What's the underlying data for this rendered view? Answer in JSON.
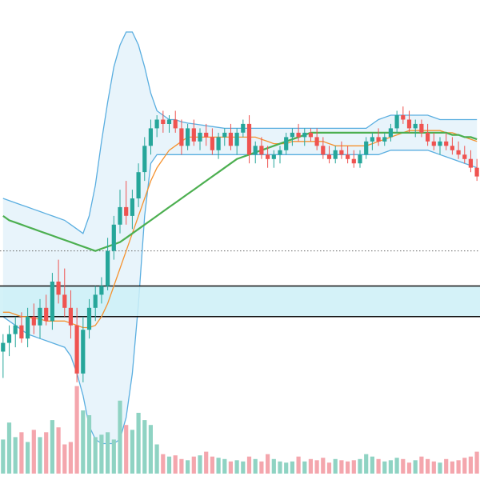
{
  "chart_data": {
    "type": "candlestick",
    "price_range": [
      5,
      100
    ],
    "volume_range": [
      0,
      100
    ],
    "grid": false,
    "legend": "none",
    "colors": {
      "up": "#26a69a",
      "down": "#ef5350",
      "volume_up": "#8fd3c3",
      "volume_down": "#f4a6ad",
      "bollinger_line": "#5aaee0",
      "bollinger_fill": "#e8f4fb",
      "ma_fast": "#f5922f",
      "ma_slow": "#4caf50",
      "zone_fill": "#cdf0f7",
      "zone_border": "#111111",
      "level_line": "#666666"
    },
    "candles": [
      {
        "o": 27,
        "h": 31,
        "l": 21,
        "c": 29
      },
      {
        "o": 29,
        "h": 33,
        "l": 26,
        "c": 31
      },
      {
        "o": 31,
        "h": 35,
        "l": 28,
        "c": 33
      },
      {
        "o": 33,
        "h": 36,
        "l": 29,
        "c": 30
      },
      {
        "o": 30,
        "h": 37,
        "l": 28,
        "c": 35
      },
      {
        "o": 35,
        "h": 38,
        "l": 31,
        "c": 33
      },
      {
        "o": 33,
        "h": 39,
        "l": 30,
        "c": 37
      },
      {
        "o": 37,
        "h": 40,
        "l": 33,
        "c": 34
      },
      {
        "o": 34,
        "h": 45,
        "l": 32,
        "c": 43
      },
      {
        "o": 43,
        "h": 48,
        "l": 38,
        "c": 40
      },
      {
        "o": 40,
        "h": 46,
        "l": 35,
        "c": 37
      },
      {
        "o": 37,
        "h": 41,
        "l": 30,
        "c": 33
      },
      {
        "o": 33,
        "h": 37,
        "l": 20,
        "c": 22
      },
      {
        "o": 22,
        "h": 35,
        "l": 20,
        "c": 32
      },
      {
        "o": 32,
        "h": 39,
        "l": 30,
        "c": 37
      },
      {
        "o": 37,
        "h": 42,
        "l": 34,
        "c": 40
      },
      {
        "o": 40,
        "h": 44,
        "l": 38,
        "c": 42
      },
      {
        "o": 42,
        "h": 53,
        "l": 41,
        "c": 50
      },
      {
        "o": 50,
        "h": 58,
        "l": 48,
        "c": 56
      },
      {
        "o": 56,
        "h": 64,
        "l": 54,
        "c": 60
      },
      {
        "o": 60,
        "h": 66,
        "l": 56,
        "c": 58
      },
      {
        "o": 58,
        "h": 64,
        "l": 55,
        "c": 62
      },
      {
        "o": 62,
        "h": 70,
        "l": 60,
        "c": 68
      },
      {
        "o": 68,
        "h": 76,
        "l": 66,
        "c": 74
      },
      {
        "o": 74,
        "h": 80,
        "l": 72,
        "c": 78
      },
      {
        "o": 78,
        "h": 81,
        "l": 76,
        "c": 80
      },
      {
        "o": 80,
        "h": 82,
        "l": 77,
        "c": 79
      },
      {
        "o": 79,
        "h": 81,
        "l": 77,
        "c": 80
      },
      {
        "o": 80,
        "h": 82,
        "l": 77,
        "c": 78
      },
      {
        "o": 78,
        "h": 80,
        "l": 72,
        "c": 74
      },
      {
        "o": 74,
        "h": 79,
        "l": 73,
        "c": 78
      },
      {
        "o": 78,
        "h": 80,
        "l": 74,
        "c": 75
      },
      {
        "o": 75,
        "h": 78,
        "l": 73,
        "c": 77
      },
      {
        "o": 77,
        "h": 79,
        "l": 74,
        "c": 76
      },
      {
        "o": 76,
        "h": 78,
        "l": 72,
        "c": 73
      },
      {
        "o": 73,
        "h": 77,
        "l": 71,
        "c": 76
      },
      {
        "o": 76,
        "h": 78,
        "l": 74,
        "c": 77
      },
      {
        "o": 77,
        "h": 79,
        "l": 73,
        "c": 74
      },
      {
        "o": 74,
        "h": 78,
        "l": 72,
        "c": 77
      },
      {
        "o": 77,
        "h": 80,
        "l": 76,
        "c": 79
      },
      {
        "o": 79,
        "h": 81,
        "l": 70,
        "c": 72
      },
      {
        "o": 72,
        "h": 75,
        "l": 70,
        "c": 74
      },
      {
        "o": 74,
        "h": 76,
        "l": 71,
        "c": 72
      },
      {
        "o": 72,
        "h": 74,
        "l": 69,
        "c": 71
      },
      {
        "o": 71,
        "h": 73,
        "l": 69,
        "c": 72
      },
      {
        "o": 72,
        "h": 74,
        "l": 70,
        "c": 73
      },
      {
        "o": 73,
        "h": 77,
        "l": 72,
        "c": 76
      },
      {
        "o": 76,
        "h": 78,
        "l": 74,
        "c": 77
      },
      {
        "o": 77,
        "h": 79,
        "l": 75,
        "c": 76
      },
      {
        "o": 76,
        "h": 78,
        "l": 74,
        "c": 77
      },
      {
        "o": 77,
        "h": 78,
        "l": 75,
        "c": 76
      },
      {
        "o": 76,
        "h": 78,
        "l": 73,
        "c": 74
      },
      {
        "o": 74,
        "h": 76,
        "l": 71,
        "c": 72
      },
      {
        "o": 72,
        "h": 74,
        "l": 70,
        "c": 71
      },
      {
        "o": 71,
        "h": 74,
        "l": 70,
        "c": 73
      },
      {
        "o": 73,
        "h": 75,
        "l": 71,
        "c": 72
      },
      {
        "o": 72,
        "h": 74,
        "l": 70,
        "c": 71
      },
      {
        "o": 71,
        "h": 73,
        "l": 69,
        "c": 70
      },
      {
        "o": 70,
        "h": 73,
        "l": 69,
        "c": 72
      },
      {
        "o": 72,
        "h": 76,
        "l": 71,
        "c": 75
      },
      {
        "o": 75,
        "h": 77,
        "l": 73,
        "c": 76
      },
      {
        "o": 76,
        "h": 78,
        "l": 74,
        "c": 75
      },
      {
        "o": 75,
        "h": 77,
        "l": 74,
        "c": 76
      },
      {
        "o": 76,
        "h": 79,
        "l": 75,
        "c": 78
      },
      {
        "o": 78,
        "h": 82,
        "l": 77,
        "c": 81
      },
      {
        "o": 81,
        "h": 83,
        "l": 79,
        "c": 80
      },
      {
        "o": 80,
        "h": 82,
        "l": 77,
        "c": 78
      },
      {
        "o": 78,
        "h": 80,
        "l": 76,
        "c": 79
      },
      {
        "o": 79,
        "h": 80,
        "l": 76,
        "c": 77
      },
      {
        "o": 77,
        "h": 79,
        "l": 74,
        "c": 75
      },
      {
        "o": 75,
        "h": 77,
        "l": 73,
        "c": 74
      },
      {
        "o": 74,
        "h": 76,
        "l": 72,
        "c": 75
      },
      {
        "o": 75,
        "h": 77,
        "l": 73,
        "c": 74
      },
      {
        "o": 74,
        "h": 76,
        "l": 72,
        "c": 73
      },
      {
        "o": 73,
        "h": 75,
        "l": 71,
        "c": 72
      },
      {
        "o": 72,
        "h": 74,
        "l": 70,
        "c": 71
      },
      {
        "o": 71,
        "h": 73,
        "l": 68,
        "c": 69
      },
      {
        "o": 69,
        "h": 71,
        "l": 66,
        "c": 67
      }
    ],
    "volumes": [
      28,
      42,
      30,
      34,
      26,
      36,
      30,
      34,
      44,
      38,
      24,
      26,
      72,
      52,
      48,
      30,
      32,
      34,
      28,
      60,
      40,
      36,
      50,
      44,
      40,
      24,
      16,
      14,
      15,
      12,
      11,
      14,
      15,
      18,
      14,
      13,
      12,
      10,
      11,
      10,
      14,
      12,
      10,
      16,
      12,
      10,
      9,
      10,
      14,
      10,
      12,
      11,
      13,
      9,
      12,
      11,
      10,
      11,
      12,
      16,
      14,
      12,
      10,
      11,
      13,
      12,
      9,
      11,
      14,
      12,
      10,
      9,
      12,
      10,
      11,
      13,
      14,
      18
    ],
    "bollinger_upper": [
      62,
      61.5,
      61,
      60.5,
      60,
      59.5,
      59,
      58.5,
      58,
      57.5,
      57,
      56,
      55,
      54,
      58,
      65,
      75,
      84,
      92,
      97,
      100,
      100,
      97,
      92,
      86,
      82,
      81,
      80,
      80,
      79.5,
      79.2,
      79,
      78.8,
      78.6,
      78.4,
      78.2,
      78,
      78,
      78,
      78,
      78,
      78,
      78,
      78,
      78,
      78,
      78,
      78,
      78,
      78,
      78,
      78,
      78,
      78,
      78,
      78,
      78,
      78,
      78,
      78,
      79,
      80,
      80.5,
      81,
      81,
      81,
      81,
      81,
      81,
      81,
      80.5,
      80,
      80,
      80,
      80,
      80,
      80,
      80
    ],
    "bollinger_lower": [
      35,
      34,
      33,
      32,
      31,
      30.5,
      30,
      29.5,
      29,
      28.5,
      28,
      26,
      22,
      17,
      10,
      7,
      6,
      6,
      6,
      7,
      12,
      22,
      38,
      58,
      70,
      72,
      72,
      72,
      72,
      72,
      72,
      72,
      72,
      72,
      72,
      72,
      72,
      72,
      72,
      72,
      72,
      72,
      72,
      72,
      72,
      72,
      72,
      72,
      72,
      72,
      72,
      72,
      72,
      72,
      72,
      72,
      72,
      72,
      72,
      72,
      72,
      72,
      72.5,
      73,
      73,
      73,
      73,
      73,
      73,
      73,
      72.5,
      72,
      71.5,
      71,
      70.5,
      70,
      69.5,
      69
    ],
    "ma_fast": [
      36,
      36,
      35.5,
      35,
      35,
      34.5,
      34.5,
      34,
      34,
      34,
      34,
      33.5,
      33,
      32.5,
      32.5,
      33,
      35,
      38,
      42,
      46,
      50,
      54,
      58,
      62,
      66,
      69,
      71,
      73,
      74,
      75,
      76,
      76,
      76,
      76,
      76,
      76,
      76,
      76,
      76,
      76,
      76,
      76,
      75.5,
      75,
      74.5,
      74.5,
      74.5,
      75,
      75,
      75,
      75,
      75,
      75,
      74.5,
      74,
      74,
      74,
      74,
      74,
      74,
      74.5,
      75,
      75.5,
      76,
      76.5,
      77,
      77.5,
      77.5,
      77.5,
      77.5,
      77.5,
      77.5,
      77,
      77,
      76.5,
      76,
      75.5,
      75
    ],
    "ma_slow": [
      58,
      57,
      56.5,
      56,
      55.5,
      55,
      54.5,
      54,
      53.5,
      53,
      52.5,
      52,
      51.5,
      51,
      50.5,
      50,
      50.5,
      51,
      51.5,
      52,
      53,
      54,
      55,
      56,
      57,
      58,
      59,
      60,
      61,
      62,
      63,
      64,
      65,
      66,
      67,
      68,
      69,
      70,
      71,
      71.5,
      72,
      72.5,
      73,
      73.5,
      74,
      74.5,
      75,
      75.5,
      76,
      76.5,
      77,
      77,
      77,
      77,
      77,
      77,
      77,
      77,
      77,
      77,
      77,
      77,
      77,
      77,
      77,
      77,
      77,
      77,
      77,
      77,
      77,
      77,
      77,
      76.5,
      76.5,
      76,
      76,
      75.5
    ],
    "zone": [
      35,
      42
    ],
    "level": 50
  }
}
